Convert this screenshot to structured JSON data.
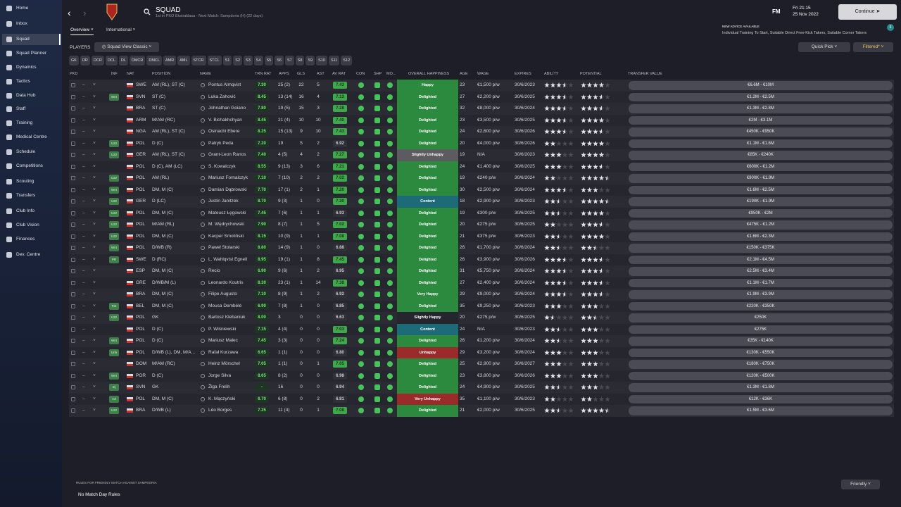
{
  "nav": [
    "Home",
    "Inbox",
    "Squad",
    "Squad Planner",
    "Dynamics",
    "Tactics",
    "Data Hub",
    "Staff",
    "Training",
    "Medical Centre",
    "Schedule",
    "Competitions",
    "Scouting",
    "Transfers",
    "Club Info",
    "Club Vision",
    "Finances",
    "Dev. Centre"
  ],
  "header": {
    "title": "SQUAD",
    "subtitle": "1st in PKO Ekstraklasa - Next Match: Sampdoria (H) (22 days)",
    "tabs": [
      "Overview",
      "International"
    ],
    "logo": "FM",
    "day_time": "Fri 21:15",
    "date": "25 Nov 2022",
    "continue": "Continue",
    "advice_title": "NEW ADVICE AVAILABLE",
    "advice_text": "Individual Training To Start, Suitable Direct Free-Kick Takers, Suitable Corner Takers",
    "advice_count": "6"
  },
  "toolbar": {
    "label": "PLAYERS",
    "view": "Squad View Classic",
    "quick_pick": "Quick Pick",
    "filtered": "Filtered*",
    "positions": [
      "GK",
      "DR",
      "DCR",
      "DCL",
      "DL",
      "DMCR",
      "DMCL",
      "AMR",
      "AML",
      "STCR",
      "STCL",
      "S1",
      "S2",
      "S3",
      "S4",
      "S5",
      "S6",
      "S7",
      "S8",
      "S9",
      "S10",
      "S11",
      "S12"
    ]
  },
  "table": {
    "columns": [
      "PKD",
      "INF",
      "NAT",
      "POSITION",
      "NAME",
      "TRN RAT",
      "APPS",
      "GLS",
      "AST",
      "AV RAT",
      "CON",
      "SHP",
      "MO...",
      "OVERALL HAPPINESS",
      "AGE",
      "WAGE",
      "EXPIRES",
      "ABILITY",
      "POTENTIAL",
      "TRANSFER VALUE"
    ],
    "rows": [
      {
        "inf": null,
        "nat": "SWE",
        "pos": "AM (RL), ST (C)",
        "name": "Pontus Almqvist",
        "trn": "7.30",
        "apps": "25 (2)",
        "gls": "22",
        "ast": "5",
        "av": "7.43",
        "happy": "Happy",
        "hc": "#2c8a3f",
        "age": "23",
        "wage": "€1,500 p/w",
        "exp": "30/6/2023",
        "abil": 3.5,
        "pot": 4,
        "value": "€6.6M - €10M"
      },
      {
        "inf": "Wnt",
        "nat": "SVN",
        "pos": "ST (C)",
        "name": "Luka Zahović",
        "trn": "8.45",
        "apps": "13 (14)",
        "gls": "16",
        "ast": "4",
        "av": "7.13",
        "happy": "Delighted",
        "hc": "#2c8a3f",
        "age": "27",
        "wage": "€2,200 p/w",
        "exp": "30/6/2025",
        "abil": 3.5,
        "pot": 3.5,
        "value": "€1.2M - €2.5M"
      },
      {
        "inf": null,
        "nat": "BRA",
        "pos": "ST (C)",
        "name": "Johnathan Goiano",
        "trn": "7.80",
        "apps": "19 (5)",
        "gls": "15",
        "ast": "3",
        "av": "7.28",
        "happy": "Delighted",
        "hc": "#2c8a3f",
        "age": "32",
        "wage": "€8,000 p/w",
        "exp": "30/6/2024",
        "abil": 3.5,
        "pot": 3.5,
        "value": "€1.3M - €2.8M"
      },
      {
        "inf": null,
        "nat": "ARM",
        "pos": "M/AM (RC)",
        "name": "V. Bichakhchyan",
        "trn": "8.45",
        "apps": "21 (4)",
        "gls": "10",
        "ast": "10",
        "av": "7.40",
        "happy": "Delighted",
        "hc": "#2c8a3f",
        "age": "23",
        "wage": "€3,500 p/w",
        "exp": "30/6/2025",
        "abil": 3.5,
        "pot": 4,
        "value": "€2M - €3.1M"
      },
      {
        "inf": null,
        "nat": "NGA",
        "pos": "AM (RL), ST (C)",
        "name": "Osinachi Ebere",
        "trn": "8.25",
        "apps": "15 (13)",
        "gls": "9",
        "ast": "10",
        "av": "7.43",
        "happy": "Delighted",
        "hc": "#2c8a3f",
        "age": "24",
        "wage": "€2,600 p/w",
        "exp": "30/6/2026",
        "abil": 3.5,
        "pot": 3.5,
        "value": "€450K - €950K"
      },
      {
        "inf": "U22",
        "nat": "POL",
        "pos": "D (C)",
        "name": "Patryk Peda",
        "trn": "7.20",
        "apps": "19",
        "gls": "5",
        "ast": "2",
        "av": "6.92",
        "happy": "Delighted",
        "hc": "#2c8a3f",
        "age": "20",
        "wage": "€4,000 p/w",
        "exp": "30/6/2026",
        "abil": 2,
        "pot": 4,
        "value": "€1.1M - €1.6M"
      },
      {
        "inf": "U22",
        "nat": "GER",
        "pos": "AM (RL), ST (C)",
        "name": "Grant-Leon Ranos",
        "trn": "7.40",
        "apps": "4 (5)",
        "gls": "4",
        "ast": "2",
        "av": "7.27",
        "happy": "Slightly Unhappy",
        "hc": "#5b5b60",
        "age": "19",
        "wage": "N/A",
        "exp": "30/6/2023",
        "abil": 3,
        "pot": 4,
        "value": "€85K - €240K"
      },
      {
        "inf": null,
        "nat": "POL",
        "pos": "D (C), AM (LC)",
        "name": "S. Kowalczyk",
        "trn": "8.55",
        "apps": "9 (13)",
        "gls": "3",
        "ast": "6",
        "av": "7.21",
        "happy": "Delighted",
        "hc": "#2c8a3f",
        "age": "24",
        "wage": "€1,400 p/w",
        "exp": "30/6/2025",
        "abil": 3,
        "pot": 3.5,
        "value": "€600K - €1.2M"
      },
      {
        "inf": "U22",
        "nat": "POL",
        "pos": "AM (RL)",
        "name": "Mariusz Fornalczyk",
        "trn": "7.10",
        "apps": "7 (10)",
        "gls": "2",
        "ast": "2",
        "av": "7.02",
        "happy": "Delighted",
        "hc": "#2c8a3f",
        "age": "19",
        "wage": "€240 p/w",
        "exp": "30/6/2024",
        "abil": 2,
        "pot": 4.5,
        "value": "€900K - €1.9M"
      },
      {
        "inf": "Wnt",
        "nat": "POL",
        "pos": "DM, M (C)",
        "name": "Damian Dąbrowski",
        "trn": "7.70",
        "apps": "17 (1)",
        "gls": "2",
        "ast": "1",
        "av": "7.20",
        "happy": "Delighted",
        "hc": "#2c8a3f",
        "age": "30",
        "wage": "€2,500 p/w",
        "exp": "30/6/2024",
        "abil": 3.5,
        "pot": 3,
        "value": "€1.6M - €2.5M"
      },
      {
        "inf": "U22",
        "nat": "GER",
        "pos": "D (LC)",
        "name": "Justin Janitzek",
        "trn": "8.70",
        "apps": "9 (3)",
        "gls": "1",
        "ast": "0",
        "av": "7.30",
        "happy": "Content",
        "hc": "#1d6b78",
        "age": "18",
        "wage": "€2,900 p/w",
        "exp": "30/6/2023",
        "abil": 2.5,
        "pot": 4.5,
        "value": "€190K - €1.9M"
      },
      {
        "inf": "U22",
        "nat": "POL",
        "pos": "DM, M (C)",
        "name": "Mateusz Łęgowski",
        "trn": "7.45",
        "apps": "7 (6)",
        "gls": "1",
        "ast": "1",
        "av": "6.93",
        "happy": "Delighted",
        "hc": "#2c8a3f",
        "age": "19",
        "wage": "€300 p/w",
        "exp": "30/6/2025",
        "abil": 2.5,
        "pot": 4,
        "value": "€950K - €2M"
      },
      {
        "inf": "U22",
        "nat": "POL",
        "pos": "M/AM (RL)",
        "name": "M. Wędrychowski",
        "trn": "7.90",
        "apps": "8 (7)",
        "gls": "1",
        "ast": "5",
        "av": "7.02",
        "happy": "Delighted",
        "hc": "#2c8a3f",
        "age": "20",
        "wage": "€275 p/w",
        "exp": "30/6/2025",
        "abil": 2,
        "pot": 3.5,
        "value": "€475K - €1.2M"
      },
      {
        "inf": "U22",
        "nat": "POL",
        "pos": "DM, M (C)",
        "name": "Kacper Smoliński",
        "trn": "8.15",
        "apps": "10 (9)",
        "gls": "1",
        "ast": "1",
        "av": "7.08",
        "happy": "Delighted",
        "hc": "#2c8a3f",
        "age": "21",
        "wage": "€375 p/w",
        "exp": "30/6/2023",
        "abil": 2.5,
        "pot": 4,
        "value": "€1.6M - €2.3M"
      },
      {
        "inf": "Wnt",
        "nat": "POL",
        "pos": "D/WB (R)",
        "name": "Paweł Stolarski",
        "trn": "8.80",
        "apps": "14 (9)",
        "gls": "1",
        "ast": "0",
        "av": "6.88",
        "happy": "Delighted",
        "hc": "#2c8a3f",
        "age": "26",
        "wage": "€1,700 p/w",
        "exp": "30/6/2024",
        "abil": 2.5,
        "pot": 2.5,
        "value": "€150K - €375K"
      },
      {
        "inf": "PR",
        "nat": "SWE",
        "pos": "D (RC)",
        "name": "L. Wahlqvist Egnell",
        "trn": "8.95",
        "apps": "19 (1)",
        "gls": "1",
        "ast": "8",
        "av": "7.45",
        "happy": "Delighted",
        "hc": "#2c8a3f",
        "age": "26",
        "wage": "€3,900 p/w",
        "exp": "30/6/2026",
        "abil": 3.5,
        "pot": 3.5,
        "value": "€2.1M - €4.5M"
      },
      {
        "inf": null,
        "nat": "ESP",
        "pos": "DM, M (C)",
        "name": "Recio",
        "trn": "6.90",
        "apps": "9 (6)",
        "gls": "1",
        "ast": "2",
        "av": "6.95",
        "happy": "Delighted",
        "hc": "#2c8a3f",
        "age": "31",
        "wage": "€5,750 p/w",
        "exp": "30/6/2024",
        "abil": 3.5,
        "pot": 3.5,
        "value": "€2.5M - €3.4M"
      },
      {
        "inf": null,
        "nat": "GRE",
        "pos": "D/WB/M (L)",
        "name": "Leonardo Koutris",
        "trn": "8.30",
        "apps": "23 (1)",
        "gls": "1",
        "ast": "14",
        "av": "7.38",
        "happy": "Delighted",
        "hc": "#2c8a3f",
        "age": "27",
        "wage": "€2,400 p/w",
        "exp": "30/6/2024",
        "abil": 3.5,
        "pot": 3.5,
        "value": "€1.1M - €1.7M"
      },
      {
        "inf": null,
        "nat": "BRA",
        "pos": "DM, M (C)",
        "name": "Filipe Augusto",
        "trn": "7.10",
        "apps": "8 (9)",
        "gls": "1",
        "ast": "2",
        "av": "6.92",
        "happy": "Very Happy",
        "hc": "#2c8a3f",
        "age": "29",
        "wage": "€9,000 p/w",
        "exp": "30/6/2024",
        "abil": 3.5,
        "pot": 3.5,
        "value": "€1.9M - €3.9M"
      },
      {
        "inf": "Rst",
        "nat": "BEL",
        "pos": "DM, M (C)",
        "name": "Mousa Dembélé",
        "trn": "6.90",
        "apps": "7 (8)",
        "gls": "1",
        "ast": "0",
        "av": "6.85",
        "happy": "Delighted",
        "hc": "#2c8a3f",
        "age": "35",
        "wage": "€9,250 p/w",
        "exp": "30/6/2023",
        "abil": 3,
        "pot": 3,
        "value": "€220K - €350K"
      },
      {
        "inf": "U22",
        "nat": "POL",
        "pos": "GK",
        "name": "Bartosz Klebaniuk",
        "trn": "8.00",
        "apps": "3",
        "gls": "0",
        "ast": "0",
        "av": "6.63",
        "happy": "Slightly Happy",
        "hc": "#24252d",
        "age": "20",
        "wage": "€275 p/w",
        "exp": "30/6/2025",
        "abil": 1.5,
        "pot": 2.5,
        "value": "€250K"
      },
      {
        "inf": null,
        "nat": "POL",
        "pos": "D (C)",
        "name": "P. Wiśniewski",
        "trn": "7.15",
        "apps": "4 (4)",
        "gls": "0",
        "ast": "0",
        "av": "7.03",
        "happy": "Content",
        "hc": "#1d6b78",
        "age": "24",
        "wage": "N/A",
        "exp": "30/6/2023",
        "abil": 2.5,
        "pot": 3,
        "value": "€275K"
      },
      {
        "inf": "Wnt",
        "nat": "POL",
        "pos": "D (C)",
        "name": "Mariusz Malec",
        "trn": "7.45",
        "apps": "3 (3)",
        "gls": "0",
        "ast": "0",
        "av": "7.24",
        "happy": "Delighted",
        "hc": "#2c8a3f",
        "age": "26",
        "wage": "€1,200 p/w",
        "exp": "30/6/2024",
        "abil": 2.5,
        "pot": 3,
        "value": "€35K - €140K"
      },
      {
        "inf": "Unh",
        "nat": "POL",
        "pos": "D/WB (L), DM, M/A...",
        "name": "Rafał Kurzawa",
        "trn": "6.65",
        "apps": "1 (1)",
        "gls": "0",
        "ast": "0",
        "av": "6.80",
        "happy": "Unhappy",
        "hc": "#9b2b2b",
        "age": "29",
        "wage": "€3,200 p/w",
        "exp": "30/6/2024",
        "abil": 3,
        "pot": 3,
        "value": "€130K - €550K"
      },
      {
        "inf": null,
        "nat": "DOM",
        "pos": "M/AM (RC)",
        "name": "Heinz Mörschel",
        "trn": "7.05",
        "apps": "1 (1)",
        "gls": "0",
        "ast": "1",
        "av": "7.05",
        "happy": "Delighted",
        "hc": "#2c8a3f",
        "age": "25",
        "wage": "€2,900 p/w",
        "exp": "30/6/2027",
        "abil": 3,
        "pot": 3,
        "value": "€180K - €750K"
      },
      {
        "inf": "Wnt",
        "nat": "POR",
        "pos": "D (C)",
        "name": "Jorge Silva",
        "trn": "8.65",
        "apps": "8 (2)",
        "gls": "0",
        "ast": "0",
        "av": "6.98",
        "happy": "Delighted",
        "hc": "#2c8a3f",
        "age": "23",
        "wage": "€3,800 p/w",
        "exp": "30/6/2026",
        "abil": 3,
        "pot": 3,
        "value": "€120K - €500K"
      },
      {
        "inf": "Inj",
        "nat": "SVN",
        "pos": "GK",
        "name": "Žiga Frelih",
        "trn": "-",
        "apps": "16",
        "gls": "0",
        "ast": "0",
        "av": "6.94",
        "happy": "Delighted",
        "hc": "#2c8a3f",
        "age": "24",
        "wage": "€4,900 p/w",
        "exp": "30/6/2025",
        "abil": 2.5,
        "pot": 3,
        "value": "€1.3M - €1.8M"
      },
      {
        "inf": "Avl",
        "nat": "POL",
        "pos": "DM, M (C)",
        "name": "K. Mączyński",
        "trn": "6.70",
        "apps": "6 (8)",
        "gls": "0",
        "ast": "2",
        "av": "6.81",
        "happy": "Very Unhappy",
        "hc": "#9b2b2b",
        "age": "35",
        "wage": "€1,100 p/w",
        "exp": "30/6/2023",
        "abil": 2,
        "pot": 2,
        "value": "€12K - €36K"
      },
      {
        "inf": "U22",
        "nat": "BRA",
        "pos": "D/WB (L)",
        "name": "Léo Borges",
        "trn": "7.25",
        "apps": "11 (4)",
        "gls": "0",
        "ast": "1",
        "av": "7.08",
        "happy": "Delighted",
        "hc": "#2c8a3f",
        "age": "21",
        "wage": "€2,000 p/w",
        "exp": "30/6/2025",
        "abil": 2.5,
        "pot": 4.5,
        "value": "€1.5M - €3.6M"
      }
    ]
  },
  "footer": {
    "rules_title": "RULES FOR FRIENDLY MATCH AGAINST SAMPDORIA",
    "rules": "No Match Day Rules",
    "match_type": "Friendly"
  }
}
